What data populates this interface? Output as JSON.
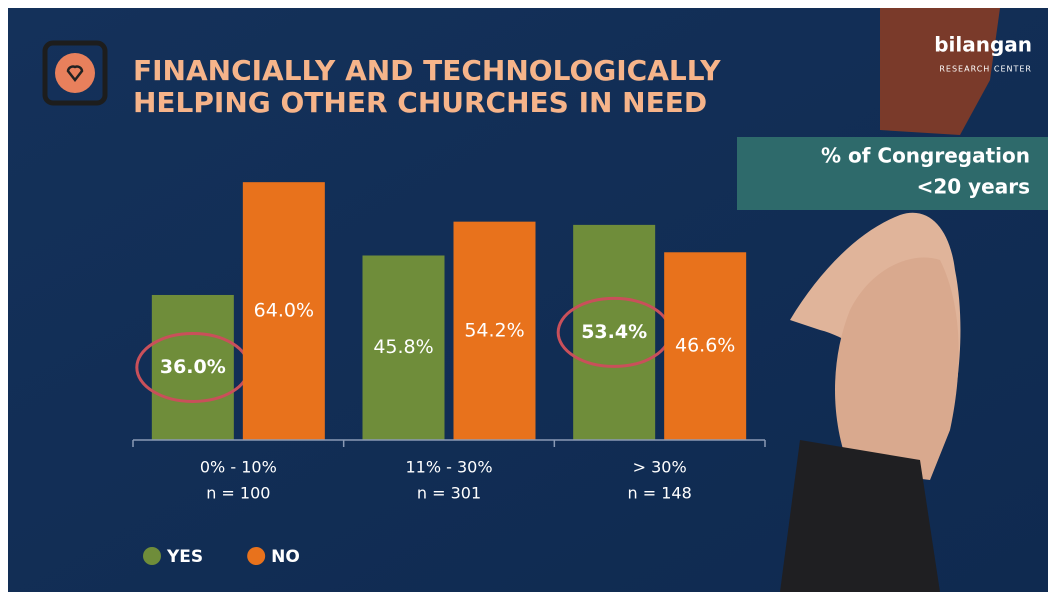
{
  "chart_data": {
    "type": "bar",
    "title": [
      "FINANCIALLY AND TECHNOLOGICALLY",
      "HELPING OTHER CHURCHES IN NEED"
    ],
    "subtitle": [
      "% of Congregation",
      "<20 years"
    ],
    "brand": {
      "name": "bilangan",
      "tagline": "RESEARCH CENTER"
    },
    "categories": [
      "0% - 10%",
      "11% - 30%",
      "> 30%"
    ],
    "sample_sizes": [
      "n = 100",
      "n = 301",
      "n = 148"
    ],
    "series": [
      {
        "name": "YES",
        "color": "#6f8d3a",
        "values": [
          36.0,
          45.8,
          53.4
        ],
        "value_labels": [
          "36.0%",
          "45.8%",
          "53.4%"
        ]
      },
      {
        "name": "NO",
        "color": "#e8721c",
        "values": [
          64.0,
          54.2,
          46.6
        ],
        "value_labels": [
          "64.0%",
          "54.2%",
          "46.6%"
        ]
      }
    ],
    "highlight": {
      "series": 0,
      "indices": [
        0,
        2
      ],
      "color": "#c9505a"
    },
    "ylim": [
      0,
      70
    ],
    "grid": false,
    "legend": "bottom-left"
  }
}
